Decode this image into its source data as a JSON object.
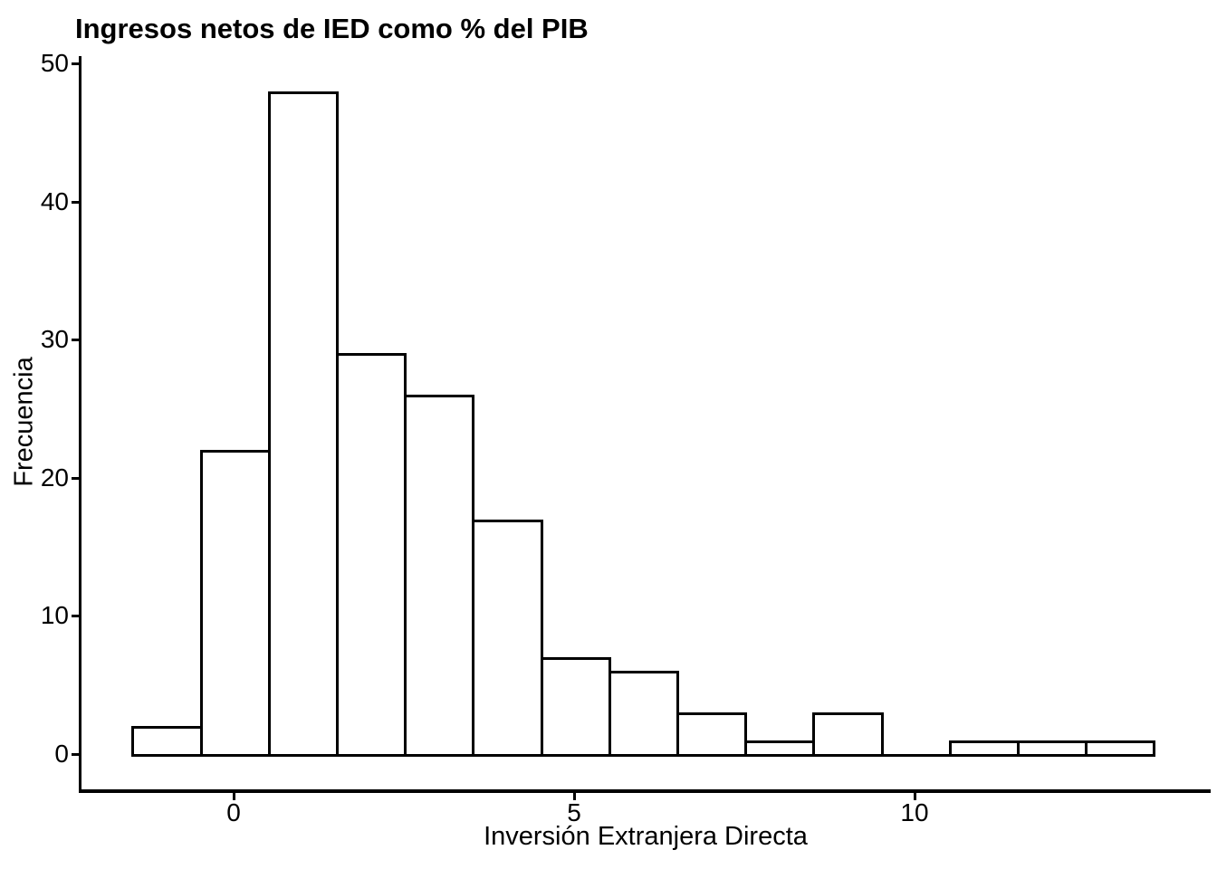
{
  "chart_data": {
    "type": "bar",
    "subtype": "histogram",
    "title": "Ingresos netos de IED como % del PIB",
    "xlabel": "Inversión Extranjera Directa",
    "ylabel": "Frecuencia",
    "bin_width": 1,
    "bin_centers": [
      -1,
      0,
      1,
      2,
      3,
      4,
      5,
      6,
      7,
      8,
      9,
      10,
      11,
      12,
      13
    ],
    "counts": [
      2,
      22,
      48,
      29,
      26,
      17,
      7,
      6,
      3,
      1,
      3,
      0,
      1,
      1,
      1
    ],
    "x_ticks": [
      0,
      5,
      10
    ],
    "x_tick_labels": [
      "0",
      "5",
      "10"
    ],
    "y_ticks": [
      0,
      10,
      20,
      30,
      40,
      50
    ],
    "y_tick_labels": [
      "0",
      "10",
      "20",
      "30",
      "40",
      "50"
    ],
    "xlim": [
      -1.5,
      13.5
    ],
    "ylim": [
      0,
      50
    ],
    "grid": false,
    "legend_position": "none",
    "bar_fill": "#ffffff",
    "bar_stroke": "#000000",
    "axis_color": "#000000",
    "text_color": "#000000",
    "background": "#ffffff"
  }
}
